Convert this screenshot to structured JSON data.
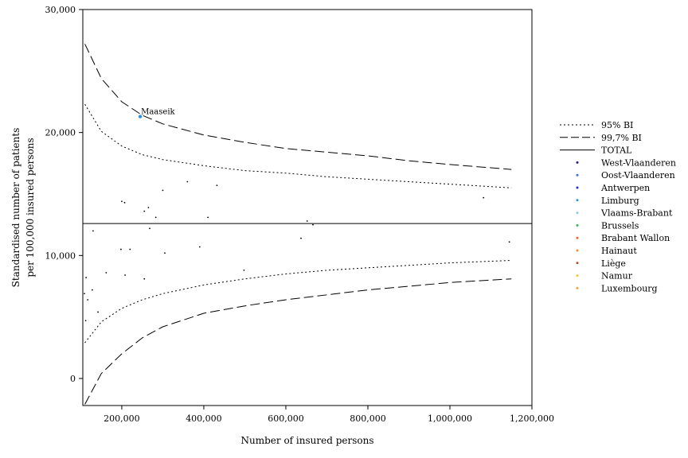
{
  "chart_data": {
    "type": "scatter",
    "title": "",
    "xlabel": "Number of insured persons",
    "ylabel_lines": [
      "Standardised number of patients",
      "per 100,000 insured persons"
    ],
    "xlim": [
      105000,
      1200000
    ],
    "ylim": [
      -2200,
      30000
    ],
    "x_ticks": [
      200000,
      400000,
      600000,
      800000,
      1000000,
      1200000
    ],
    "x_tick_labels": [
      "200,000",
      "400,000",
      "600,000",
      "800,000",
      "1,000,000",
      "1,200,000"
    ],
    "y_ticks": [
      0,
      10000,
      20000,
      30000
    ],
    "y_tick_labels": [
      "0",
      "10,000",
      "20,000",
      "30,000"
    ],
    "total_value": 12600,
    "legend_placement": "right",
    "legend": [
      {
        "label": "95% BI",
        "kind": "dotted-line",
        "color": "#000000"
      },
      {
        "label": "99,7% BI",
        "kind": "dashed-line",
        "color": "#000000"
      },
      {
        "label": "TOTAL",
        "kind": "solid-line",
        "color": "#000000"
      },
      {
        "label": "West-Vlaanderen",
        "kind": "dot",
        "color": "#1a237e"
      },
      {
        "label": "Oost-Vlaanderen",
        "kind": "dot",
        "color": "#3f6fd8"
      },
      {
        "label": "Antwerpen",
        "kind": "dot",
        "color": "#1c2fd0"
      },
      {
        "label": "Limburg",
        "kind": "dot",
        "color": "#2f8fe0"
      },
      {
        "label": "Vlaams-Brabant",
        "kind": "dot",
        "color": "#8ec5ef"
      },
      {
        "label": "Brussels",
        "kind": "dot",
        "color": "#3cb54a"
      },
      {
        "label": "Brabant Wallon",
        "kind": "dot",
        "color": "#e4642a"
      },
      {
        "label": "Hainaut",
        "kind": "dot",
        "color": "#f08a3a"
      },
      {
        "label": "Liège",
        "kind": "dot",
        "color": "#b0502a"
      },
      {
        "label": "Namur",
        "kind": "dot",
        "color": "#f5c530"
      },
      {
        "label": "Luxembourg",
        "kind": "dot",
        "color": "#f2a03a"
      }
    ],
    "ci95": {
      "x": [
        110000,
        150000,
        200000,
        250000,
        300000,
        400000,
        500000,
        600000,
        700000,
        800000,
        900000,
        1000000,
        1150000
      ],
      "upper": [
        22300,
        20100,
        18900,
        18200,
        17800,
        17300,
        16900,
        16700,
        16400,
        16200,
        16000,
        15800,
        15500
      ],
      "lower": [
        2900,
        4600,
        5700,
        6400,
        6900,
        7600,
        8100,
        8500,
        8800,
        9000,
        9200,
        9400,
        9600
      ]
    },
    "ci997": {
      "x": [
        110000,
        150000,
        200000,
        250000,
        300000,
        400000,
        500000,
        600000,
        700000,
        800000,
        900000,
        1000000,
        1150000
      ],
      "upper": [
        27200,
        24400,
        22500,
        21400,
        20700,
        19800,
        19200,
        18700,
        18400,
        18100,
        17700,
        17400,
        17000
      ],
      "lower": [
        -2100,
        400,
        2000,
        3300,
        4200,
        5300,
        5900,
        6400,
        6800,
        7200,
        7500,
        7800,
        8100
      ]
    },
    "points": [
      {
        "x": 245000,
        "y": 21300,
        "color": "#2f8fe0",
        "label": "Maaseik"
      },
      {
        "x": 200000,
        "y": 14400,
        "color": "#000000"
      },
      {
        "x": 207000,
        "y": 14300,
        "color": "#000000"
      },
      {
        "x": 255000,
        "y": 13600,
        "color": "#000000"
      },
      {
        "x": 265000,
        "y": 13900,
        "color": "#000000"
      },
      {
        "x": 283000,
        "y": 13100,
        "color": "#000000"
      },
      {
        "x": 300000,
        "y": 15300,
        "color": "#000000"
      },
      {
        "x": 360000,
        "y": 16000,
        "color": "#000000"
      },
      {
        "x": 410000,
        "y": 13100,
        "color": "#000000"
      },
      {
        "x": 432000,
        "y": 15700,
        "color": "#000000"
      },
      {
        "x": 652000,
        "y": 12800,
        "color": "#000000"
      },
      {
        "x": 666000,
        "y": 12500,
        "color": "#000000"
      },
      {
        "x": 1082000,
        "y": 14700,
        "color": "#000000"
      },
      {
        "x": 130000,
        "y": 12000,
        "color": "#000000"
      },
      {
        "x": 268000,
        "y": 12200,
        "color": "#000000"
      },
      {
        "x": 198000,
        "y": 10500,
        "color": "#000000"
      },
      {
        "x": 220000,
        "y": 10500,
        "color": "#000000"
      },
      {
        "x": 305000,
        "y": 10200,
        "color": "#000000"
      },
      {
        "x": 390000,
        "y": 10700,
        "color": "#000000"
      },
      {
        "x": 637000,
        "y": 11400,
        "color": "#000000"
      },
      {
        "x": 1145000,
        "y": 11100,
        "color": "#000000"
      },
      {
        "x": 113000,
        "y": 8200,
        "color": "#000000"
      },
      {
        "x": 162000,
        "y": 8600,
        "color": "#000000"
      },
      {
        "x": 208000,
        "y": 8400,
        "color": "#000000"
      },
      {
        "x": 255000,
        "y": 8100,
        "color": "#000000"
      },
      {
        "x": 498000,
        "y": 8800,
        "color": "#000000"
      },
      {
        "x": 109000,
        "y": 6900,
        "color": "#000000"
      },
      {
        "x": 128000,
        "y": 7200,
        "color": "#000000"
      },
      {
        "x": 117000,
        "y": 6400,
        "color": "#000000"
      },
      {
        "x": 142000,
        "y": 5400,
        "color": "#000000"
      },
      {
        "x": 112000,
        "y": 4700,
        "color": "#000000"
      }
    ]
  }
}
